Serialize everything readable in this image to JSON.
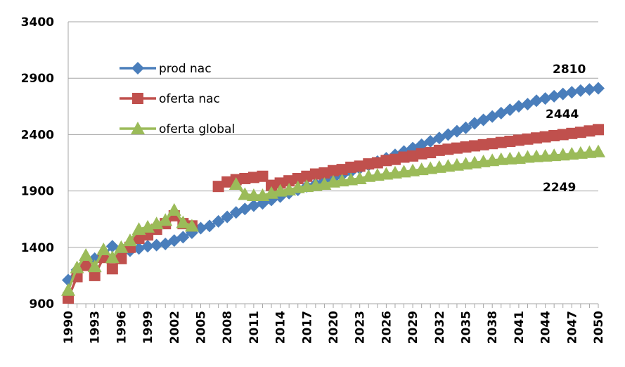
{
  "chart_data": {
    "type": "line",
    "title": "",
    "xlabel": "",
    "ylabel": "",
    "ylim": [
      900,
      3400
    ],
    "yticks": [
      900,
      1400,
      1900,
      2400,
      2900,
      3400
    ],
    "grid": true,
    "legend_position": "top-left",
    "x_start": 1990,
    "x_end": 2050,
    "xtick_labels": [
      "1990",
      "1993",
      "1996",
      "1999",
      "2002",
      "2005",
      "2008",
      "2011",
      "2014",
      "2017",
      "2020",
      "2023",
      "2026",
      "2029",
      "2032",
      "2035",
      "2038",
      "2041",
      "2044",
      "2047",
      "2050"
    ],
    "series": [
      {
        "name": "prod nac",
        "color": "#4a7ebb",
        "marker": "diamond",
        "values": [
          1110,
          1200,
          1260,
          1300,
          1330,
          1410,
          1360,
          1370,
          1390,
          1410,
          1420,
          1430,
          1460,
          1490,
          1530,
          1570,
          1590,
          1630,
          1670,
          1710,
          1740,
          1770,
          1790,
          1820,
          1850,
          1880,
          1910,
          1940,
          1960,
          1990,
          2010,
          2040,
          2070,
          2100,
          2130,
          2160,
          2190,
          2220,
          2250,
          2280,
          2310,
          2340,
          2370,
          2400,
          2430,
          2460,
          2500,
          2530,
          2560,
          2590,
          2620,
          2650,
          2670,
          2700,
          2720,
          2740,
          2760,
          2775,
          2790,
          2800,
          2810
        ]
      },
      {
        "name": "oferta nac",
        "color": "#c0504d",
        "marker": "square",
        "values": [
          950,
          1140,
          1240,
          1150,
          1310,
          1210,
          1300,
          1400,
          1480,
          1510,
          1560,
          1610,
          1680,
          1610,
          1590,
          null,
          null,
          1940,
          1980,
          2000,
          2010,
          2020,
          2030,
          1950,
          1970,
          1990,
          2010,
          2030,
          2050,
          2060,
          2080,
          2090,
          2110,
          2120,
          2140,
          2150,
          2170,
          2180,
          2200,
          2210,
          2230,
          2240,
          2260,
          2270,
          2280,
          2290,
          2300,
          2310,
          2320,
          2330,
          2340,
          2350,
          2360,
          2370,
          2380,
          2390,
          2400,
          2410,
          2420,
          2432,
          2444
        ]
      },
      {
        "name": "oferta global",
        "color": "#9bbb59",
        "marker": "triangle",
        "values": [
          1020,
          1220,
          1330,
          1230,
          1380,
          1310,
          1400,
          1460,
          1560,
          1580,
          1610,
          1640,
          1730,
          1620,
          1590,
          null,
          null,
          null,
          null,
          1960,
          1870,
          1860,
          1860,
          1880,
          1900,
          1910,
          1930,
          1940,
          1950,
          1960,
          1980,
          1990,
          2000,
          2010,
          2030,
          2040,
          2050,
          2060,
          2070,
          2080,
          2090,
          2100,
          2110,
          2120,
          2130,
          2140,
          2150,
          2160,
          2170,
          2180,
          2185,
          2190,
          2200,
          2205,
          2210,
          2215,
          2220,
          2228,
          2235,
          2242,
          2249
        ]
      }
    ],
    "annotations": [
      {
        "text": "2810",
        "series": "prod nac",
        "x": 2050,
        "y": 2810
      },
      {
        "text": "2444",
        "series": "oferta nac",
        "x": 2050,
        "y": 2444
      },
      {
        "text": "2249",
        "series": "oferta global",
        "x": 2050,
        "y": 2249
      }
    ]
  }
}
